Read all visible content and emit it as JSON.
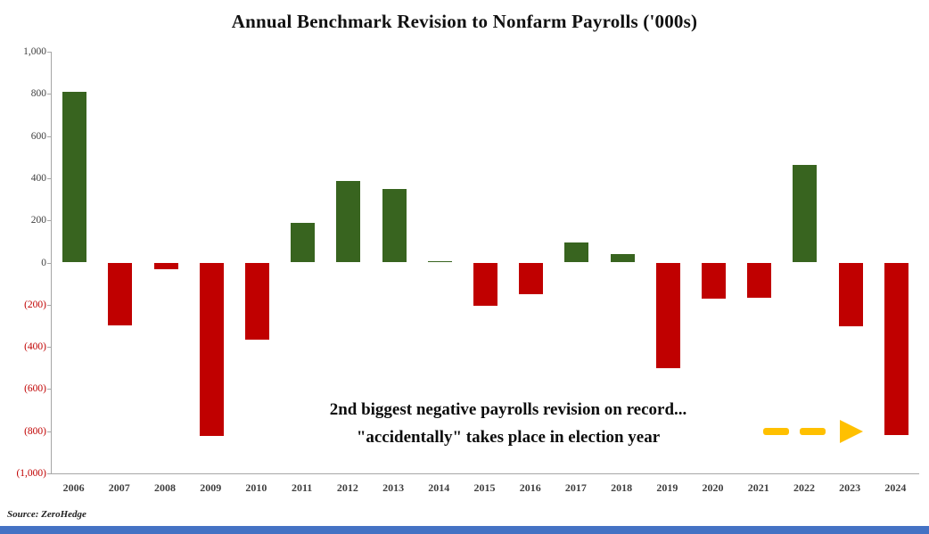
{
  "title": "Annual Benchmark Revision to Nonfarm Payrolls ('000s)",
  "source": "Source: ZeroHedge",
  "annotation": {
    "line1": "2nd  biggest negative payrolls revision on record...",
    "line2": "\"accidentally\" takes place in election year"
  },
  "colors": {
    "positive": "#38641f",
    "negative": "#c00000",
    "neg-label": "#c00000",
    "tick-label": "#3f3f3f",
    "axis-line": "#a6a6a6",
    "arrow": "#ffc000",
    "bottom-bar": "#4472c4"
  },
  "chart_data": {
    "type": "bar",
    "title": "Annual Benchmark Revision to Nonfarm Payrolls ('000s)",
    "categories": [
      "2006",
      "2007",
      "2008",
      "2009",
      "2010",
      "2011",
      "2012",
      "2013",
      "2014",
      "2015",
      "2016",
      "2017",
      "2018",
      "2019",
      "2020",
      "2021",
      "2022",
      "2023",
      "2024"
    ],
    "values": [
      810,
      -297,
      -30,
      -824,
      -366,
      190,
      386,
      347,
      8,
      -207,
      -152,
      97,
      42,
      -501,
      -173,
      -165,
      461,
      -304,
      -818
    ],
    "xlabel": "",
    "ylabel": "",
    "ylim": [
      -1000,
      1000
    ],
    "grid": false,
    "legend": false,
    "yticks": [
      {
        "v": 1000,
        "label": "1,000"
      },
      {
        "v": 800,
        "label": "800"
      },
      {
        "v": 600,
        "label": "600"
      },
      {
        "v": 400,
        "label": "400"
      },
      {
        "v": 200,
        "label": "200"
      },
      {
        "v": 0,
        "label": "0"
      },
      {
        "v": -200,
        "label": "(200)"
      },
      {
        "v": -400,
        "label": "(400)"
      },
      {
        "v": -600,
        "label": "(600)"
      },
      {
        "v": -800,
        "label": "(800)"
      },
      {
        "v": -1000,
        "label": "(1,000)"
      }
    ]
  }
}
